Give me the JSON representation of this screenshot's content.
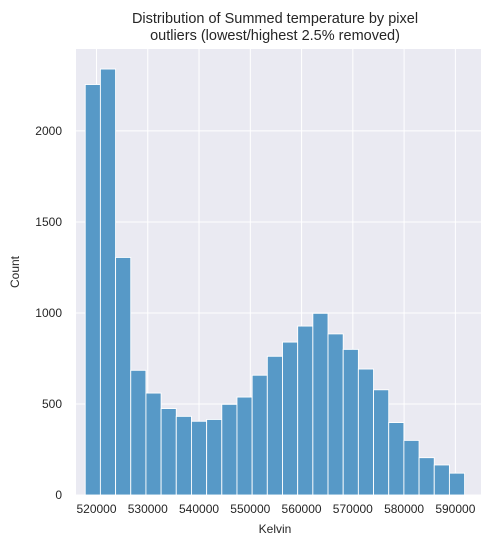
{
  "chart_data": {
    "type": "histogram",
    "title_line1": "Distribution of Summed temperature by pixel",
    "title_line2": "outliers (lowest/highest 2.5% removed)",
    "xlabel": "Kelvin",
    "ylabel": "Count",
    "xlim": [
      516000,
      595000
    ],
    "ylim": [
      0,
      2450
    ],
    "xticks": [
      520000,
      530000,
      540000,
      550000,
      560000,
      570000,
      580000,
      590000
    ],
    "yticks": [
      0,
      500,
      1000,
      1500,
      2000,
      2500
    ],
    "bin_start": 517800,
    "bin_width": 2960,
    "counts": [
      2255,
      2340,
      1305,
      685,
      560,
      475,
      432,
      405,
      415,
      498,
      538,
      658,
      762,
      840,
      928,
      998,
      885,
      800,
      692,
      578,
      398,
      300,
      205,
      165,
      120
    ],
    "grid": true,
    "bar_color": "#5799c7",
    "background_color": "#eaeaf2"
  }
}
